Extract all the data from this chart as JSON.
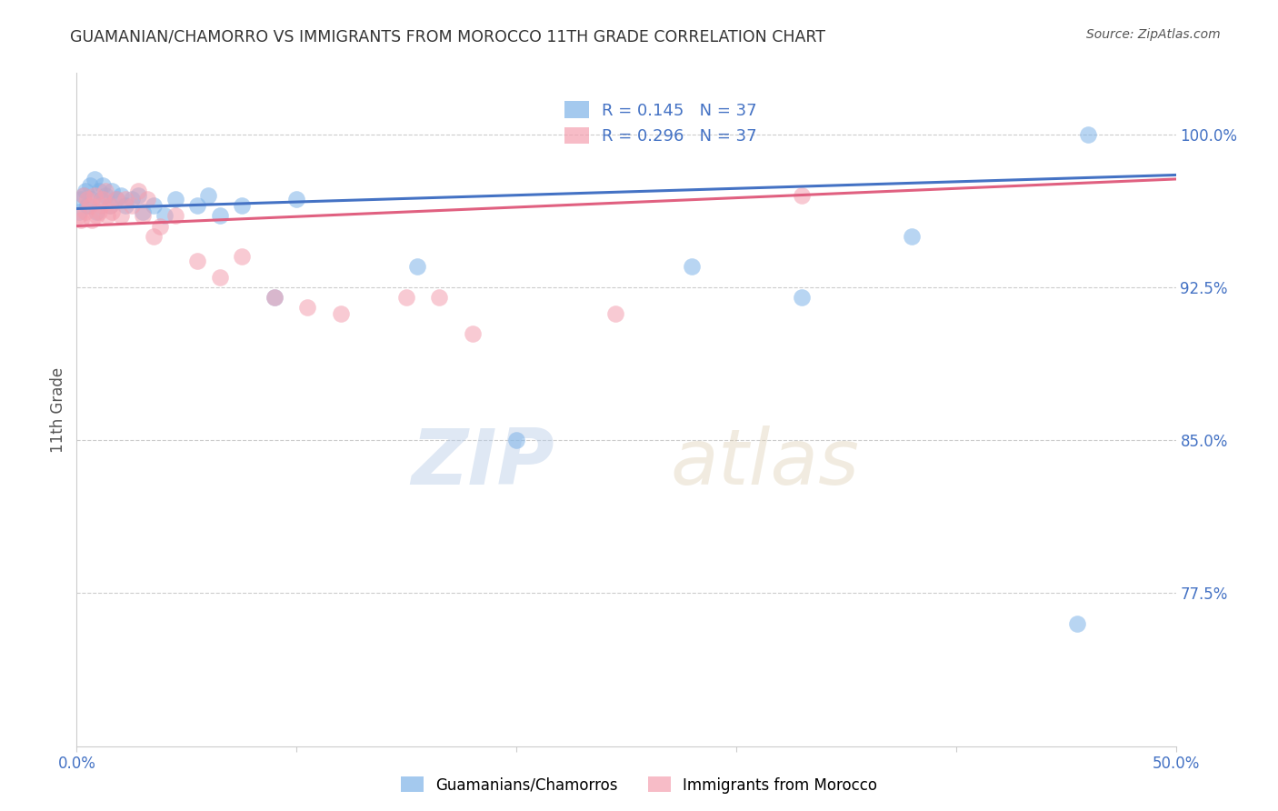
{
  "title": "GUAMANIAN/CHAMORRO VS IMMIGRANTS FROM MOROCCO 11TH GRADE CORRELATION CHART",
  "source": "Source: ZipAtlas.com",
  "ylabel": "11th Grade",
  "xlim": [
    0.0,
    0.5
  ],
  "ylim": [
    0.7,
    1.03
  ],
  "xticks": [
    0.0,
    0.1,
    0.2,
    0.3,
    0.4,
    0.5
  ],
  "xticklabels": [
    "0.0%",
    "",
    "",
    "",
    "",
    "50.0%"
  ],
  "ytick_positions": [
    1.0,
    0.925,
    0.85,
    0.775
  ],
  "ytick_labels": [
    "100.0%",
    "92.5%",
    "85.0%",
    "77.5%"
  ],
  "r_blue": 0.145,
  "n_blue": 37,
  "r_pink": 0.296,
  "n_pink": 37,
  "blue_color": "#7EB3E8",
  "pink_color": "#F4A0B0",
  "trend_blue": "#4472C4",
  "trend_pink": "#E06080",
  "legend_label_blue": "Guamanians/Chamorros",
  "legend_label_pink": "Immigrants from Morocco",
  "blue_scatter_x": [
    0.001,
    0.002,
    0.003,
    0.004,
    0.005,
    0.006,
    0.007,
    0.008,
    0.009,
    0.01,
    0.011,
    0.012,
    0.013,
    0.015,
    0.016,
    0.018,
    0.02,
    0.022,
    0.025,
    0.028,
    0.03,
    0.035,
    0.04,
    0.045,
    0.055,
    0.06,
    0.065,
    0.075,
    0.09,
    0.1,
    0.155,
    0.2,
    0.28,
    0.33,
    0.38,
    0.455,
    0.46
  ],
  "blue_scatter_y": [
    0.962,
    0.968,
    0.97,
    0.972,
    0.965,
    0.975,
    0.968,
    0.978,
    0.962,
    0.972,
    0.968,
    0.975,
    0.97,
    0.965,
    0.972,
    0.968,
    0.97,
    0.965,
    0.968,
    0.97,
    0.962,
    0.965,
    0.96,
    0.968,
    0.965,
    0.97,
    0.96,
    0.965,
    0.92,
    0.968,
    0.935,
    0.85,
    0.935,
    0.92,
    0.95,
    0.76,
    1.0
  ],
  "pink_scatter_x": [
    0.001,
    0.002,
    0.003,
    0.004,
    0.005,
    0.006,
    0.007,
    0.008,
    0.009,
    0.01,
    0.011,
    0.012,
    0.013,
    0.014,
    0.015,
    0.016,
    0.018,
    0.02,
    0.022,
    0.025,
    0.028,
    0.03,
    0.032,
    0.035,
    0.038,
    0.045,
    0.055,
    0.065,
    0.075,
    0.09,
    0.105,
    0.12,
    0.15,
    0.165,
    0.18,
    0.245,
    0.33
  ],
  "pink_scatter_y": [
    0.96,
    0.958,
    0.97,
    0.962,
    0.968,
    0.965,
    0.958,
    0.97,
    0.96,
    0.962,
    0.965,
    0.968,
    0.972,
    0.96,
    0.965,
    0.962,
    0.968,
    0.96,
    0.968,
    0.965,
    0.972,
    0.96,
    0.968,
    0.95,
    0.955,
    0.96,
    0.938,
    0.93,
    0.94,
    0.92,
    0.915,
    0.912,
    0.92,
    0.92,
    0.902,
    0.912,
    0.97
  ],
  "watermark_zip": "ZIP",
  "watermark_atlas": "atlas",
  "background_color": "#ffffff",
  "grid_color": "#cccccc",
  "axis_color": "#cccccc"
}
